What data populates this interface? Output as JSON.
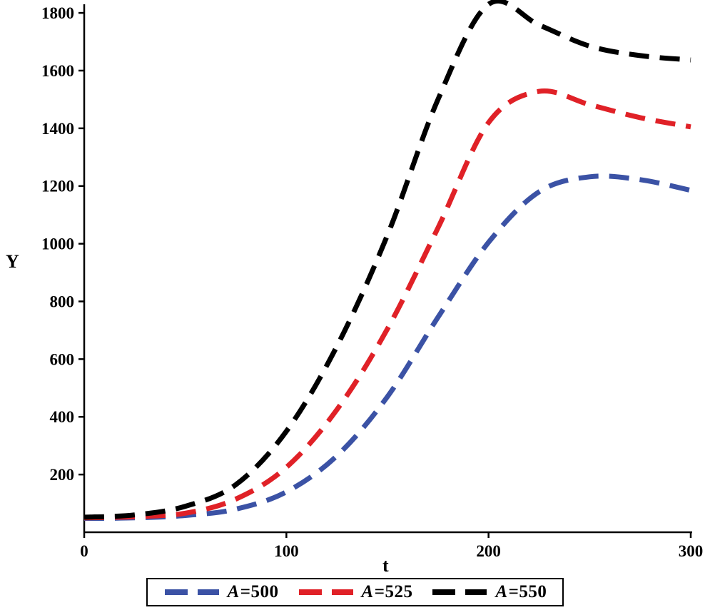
{
  "figure": {
    "background": "#ffffff",
    "axis_color": "#000000"
  },
  "chart_data": {
    "type": "line",
    "title": "",
    "xlabel": "t",
    "ylabel": "Y",
    "xlim": [
      0,
      300
    ],
    "ylim": [
      0,
      1820
    ],
    "xticks": [
      0,
      100,
      200,
      300
    ],
    "yticks": [
      200,
      400,
      600,
      800,
      1000,
      1200,
      1400,
      1600,
      1800
    ],
    "grid": false,
    "line_style": "dashed",
    "legend_position": "bottom",
    "x": [
      0,
      25,
      50,
      75,
      100,
      125,
      150,
      175,
      200,
      225,
      250,
      275,
      300
    ],
    "series": [
      {
        "name": "A=500",
        "color": "#3b52a5",
        "values": [
          48,
          50,
          58,
          80,
          140,
          265,
          470,
          745,
          1005,
          1180,
          1232,
          1222,
          1185
        ]
      },
      {
        "name": "A=525",
        "color": "#e02127",
        "values": [
          50,
          54,
          66,
          115,
          225,
          425,
          705,
          1055,
          1420,
          1528,
          1482,
          1437,
          1405
        ]
      },
      {
        "name": "A=550",
        "color": "#000000",
        "values": [
          52,
          60,
          90,
          165,
          350,
          645,
          1030,
          1500,
          1830,
          1758,
          1685,
          1652,
          1637
        ]
      }
    ]
  }
}
